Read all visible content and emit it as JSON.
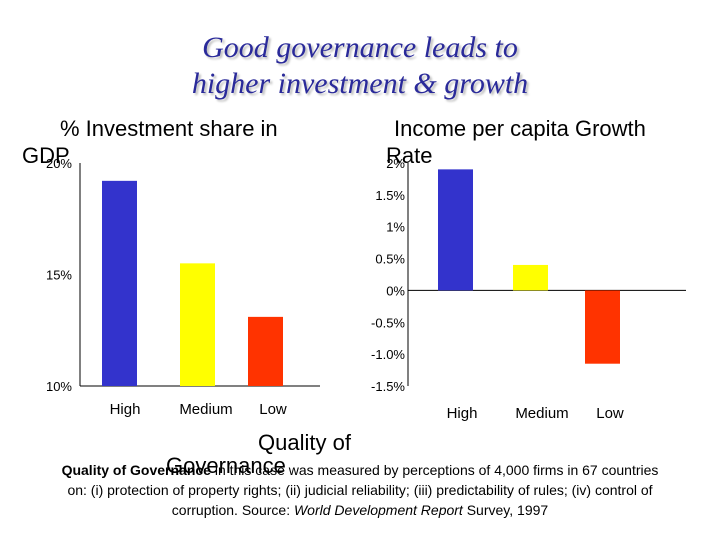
{
  "slide": {
    "title_line1": "Good governance leads to",
    "title_line2": "higher investment & growth",
    "xlabel_line1": "Quality of",
    "xlabel_line2": "Governance",
    "footnote": {
      "lead": "Quality of Governance",
      "line1_rest": " in this case was measured by perceptions of 4,000 firms in 67 countries",
      "line2": "on: (i) protection of property rights; (ii) judicial reliability; (iii) predictability of rules; (iv) control of",
      "line3_pre": "corruption.  Source: ",
      "line3_italic": "World Development Report",
      "line3_post": " Survey, 1997"
    }
  },
  "chart_data": [
    {
      "type": "bar",
      "title_line1": "% Investment share in",
      "title_line2": "GDP",
      "categories": [
        "High",
        "Medium",
        "Low"
      ],
      "values": [
        19.2,
        15.5,
        13.1
      ],
      "ylim": [
        10,
        20
      ],
      "yticks": [
        "10%",
        "15%",
        "20%"
      ],
      "colors": [
        "#3333cc",
        "#ffff00",
        "#ff3300"
      ],
      "grid": false
    },
    {
      "type": "bar",
      "title_line1": "Income per capita Growth",
      "title_line2": "Rate",
      "categories": [
        "High",
        "Medium",
        "Low"
      ],
      "values": [
        1.9,
        0.4,
        -1.15
      ],
      "ylim": [
        -1.5,
        2
      ],
      "yticks": [
        "-1.5%",
        "-1.0%",
        "-0.5%",
        "0%",
        "0.5%",
        "1%",
        "1.5%",
        "2%"
      ],
      "colors": [
        "#3333cc",
        "#ffff00",
        "#ff3300"
      ],
      "grid": false
    }
  ]
}
